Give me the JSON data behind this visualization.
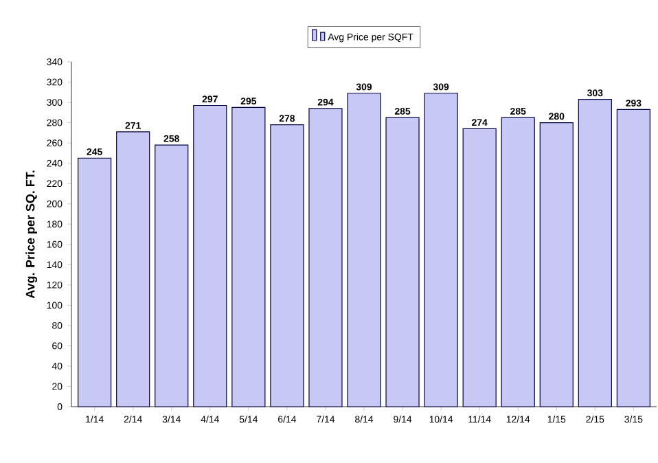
{
  "chart_data": {
    "type": "bar",
    "ylabel": "Avg. Price per SQ. FT.",
    "categories": [
      "1/14",
      "2/14",
      "3/14",
      "4/14",
      "5/14",
      "6/14",
      "7/14",
      "8/14",
      "9/14",
      "10/14",
      "11/14",
      "12/14",
      "1/15",
      "2/15",
      "3/15"
    ],
    "series": [
      {
        "name": "Avg Price per SQFT",
        "color": "#c8c8f4",
        "values": [
          245,
          271,
          258,
          297,
          295,
          278,
          294,
          309,
          285,
          309,
          274,
          285,
          280,
          303,
          293
        ]
      }
    ],
    "ylim": [
      0,
      340
    ],
    "yticks": [
      0,
      20,
      40,
      60,
      80,
      100,
      120,
      140,
      160,
      180,
      200,
      220,
      240,
      260,
      280,
      300,
      320,
      340
    ],
    "data_labels": true,
    "legend": "top",
    "grid": false
  }
}
